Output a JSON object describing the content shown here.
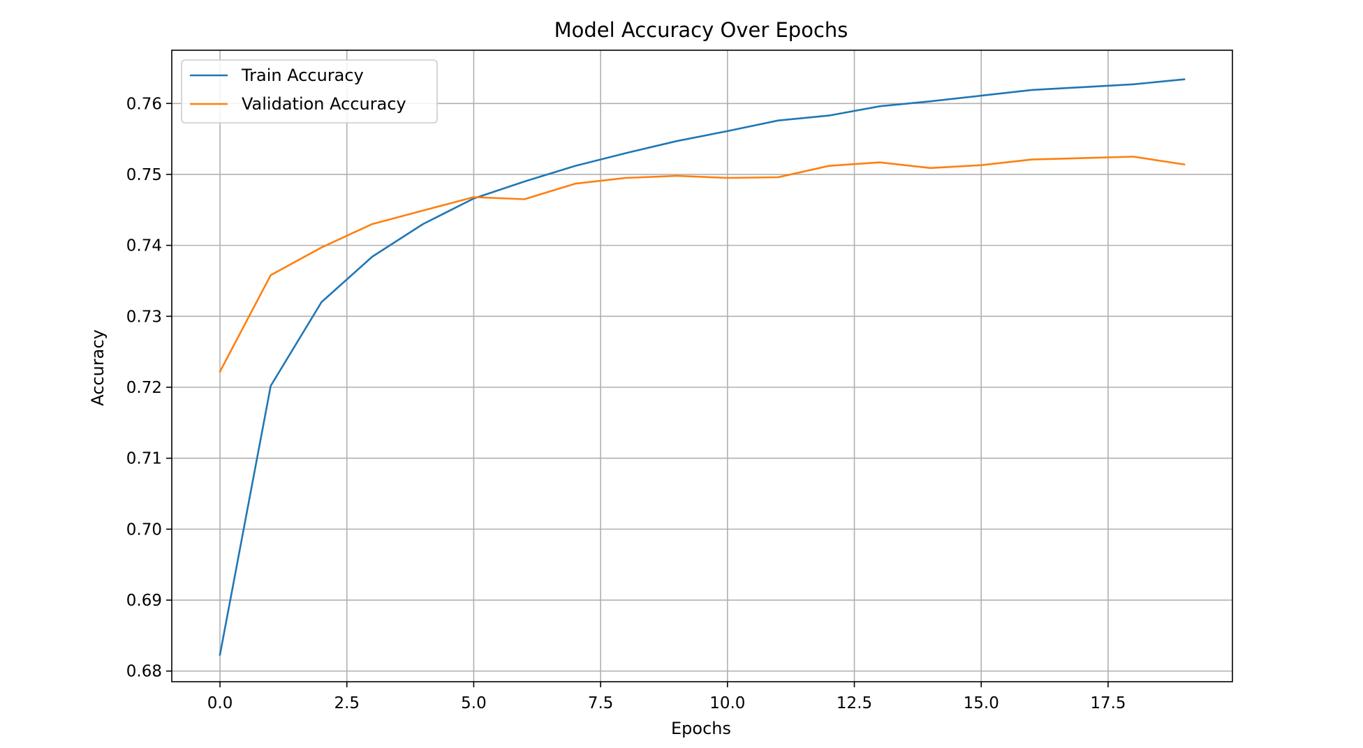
{
  "chart_data": {
    "type": "line",
    "title": "Model Accuracy Over Epochs",
    "xlabel": "Epochs",
    "ylabel": "Accuracy",
    "xlim": [
      -0.95,
      19.95
    ],
    "ylim": [
      0.6785,
      0.7675
    ],
    "x_ticks": [
      0.0,
      2.5,
      5.0,
      7.5,
      10.0,
      12.5,
      15.0,
      17.5
    ],
    "x_tick_labels": [
      "0.0",
      "2.5",
      "5.0",
      "7.5",
      "10.0",
      "12.5",
      "15.0",
      "17.5"
    ],
    "y_ticks": [
      0.68,
      0.69,
      0.7,
      0.71,
      0.72,
      0.73,
      0.74,
      0.75,
      0.76
    ],
    "y_tick_labels": [
      "0.68",
      "0.69",
      "0.70",
      "0.71",
      "0.72",
      "0.73",
      "0.74",
      "0.75",
      "0.76"
    ],
    "grid": true,
    "legend_position": "top-left",
    "x": [
      0,
      1,
      2,
      3,
      4,
      5,
      6,
      7,
      8,
      9,
      10,
      11,
      12,
      13,
      14,
      15,
      16,
      17,
      18,
      19
    ],
    "series": [
      {
        "name": "Train Accuracy",
        "color": "#1f77b4",
        "values": [
          0.6823,
          0.7202,
          0.732,
          0.7384,
          0.743,
          0.7466,
          0.749,
          0.7512,
          0.753,
          0.7547,
          0.7561,
          0.7576,
          0.7583,
          0.7596,
          0.7603,
          0.7611,
          0.7619,
          0.7623,
          0.7627,
          0.7634
        ]
      },
      {
        "name": "Validation Accuracy",
        "color": "#ff7f0e",
        "values": [
          0.7222,
          0.7358,
          0.7397,
          0.743,
          0.7449,
          0.7468,
          0.7465,
          0.7487,
          0.7495,
          0.7498,
          0.7495,
          0.7496,
          0.7512,
          0.7517,
          0.7509,
          0.7513,
          0.7521,
          0.7523,
          0.7525,
          0.7514
        ]
      }
    ]
  }
}
